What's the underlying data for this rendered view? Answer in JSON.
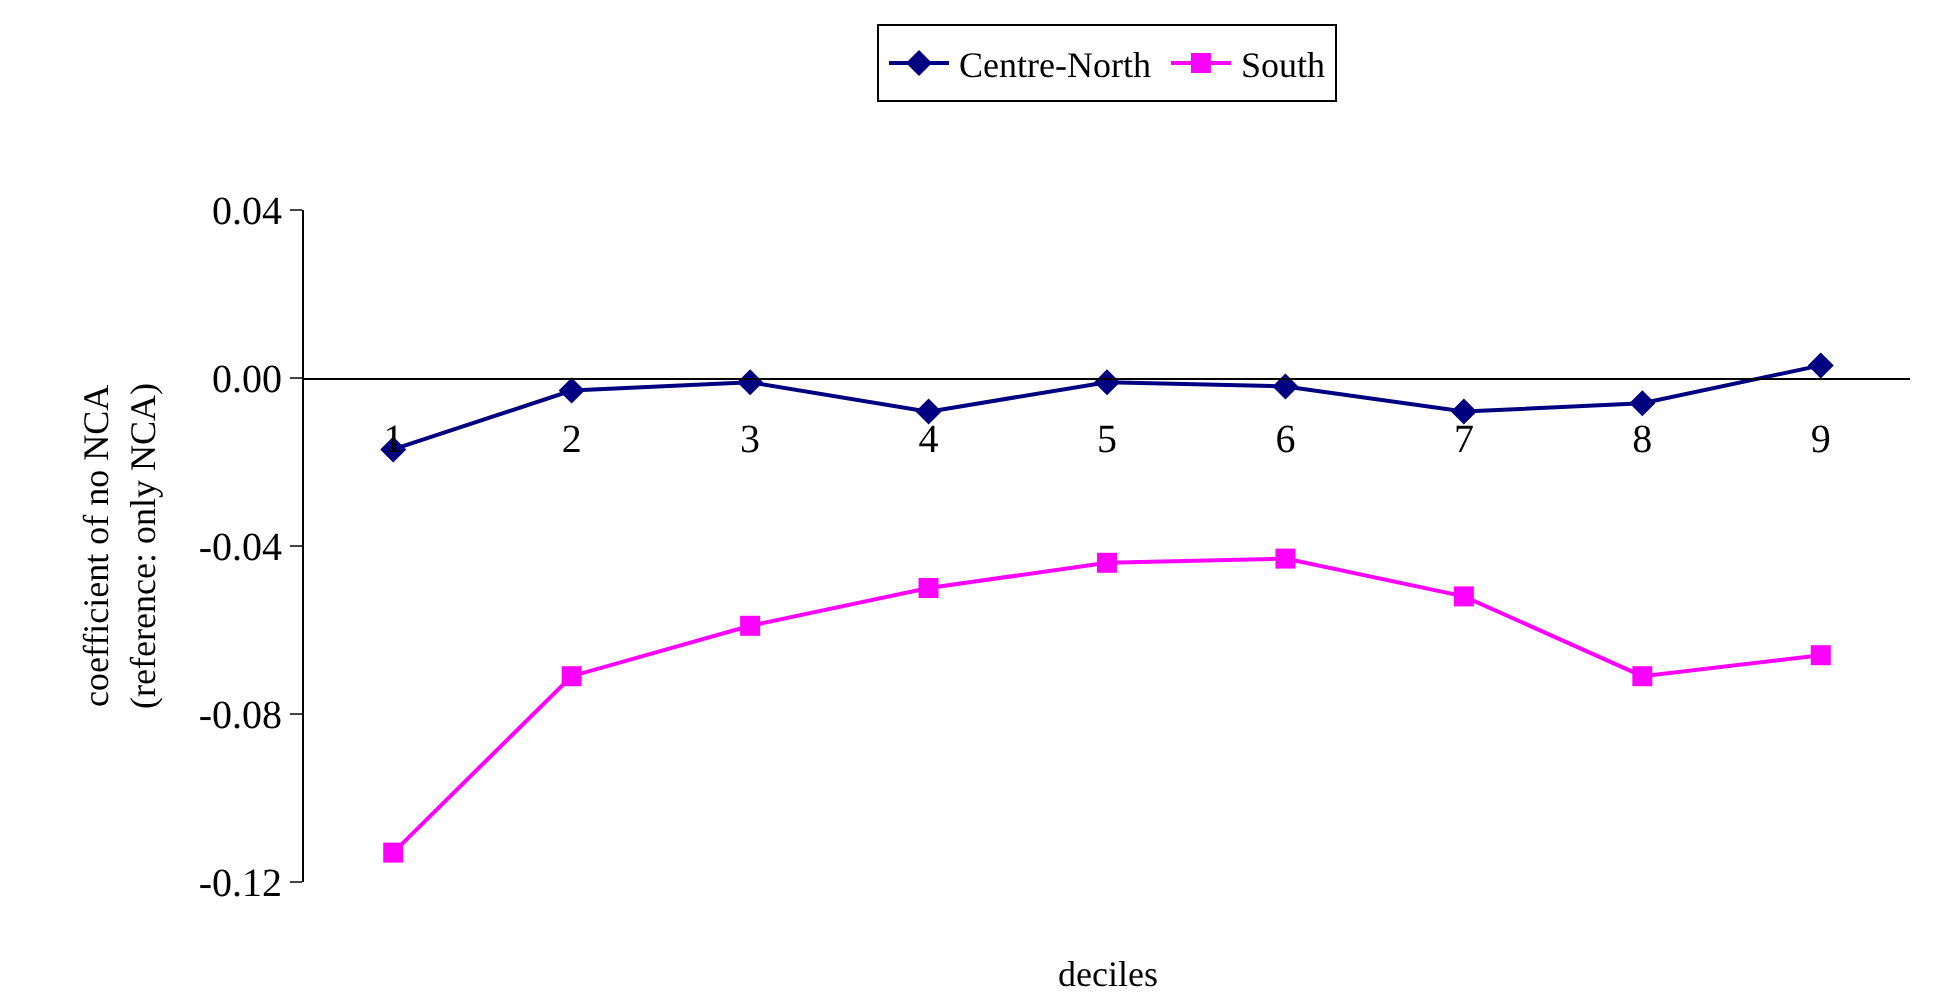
{
  "chart_data": {
    "type": "line",
    "xlabel": "deciles",
    "ylabel": "coefficient of no NCA\n(reference: only NCA)",
    "categories": [
      "1",
      "2",
      "3",
      "4",
      "5",
      "6",
      "7",
      "8",
      "9"
    ],
    "series": [
      {
        "name": "Centre-North",
        "color": "#000080",
        "marker": "diamond",
        "values": [
          -0.017,
          -0.003,
          -0.001,
          -0.008,
          -0.001,
          -0.002,
          -0.008,
          -0.006,
          0.003
        ]
      },
      {
        "name": "South",
        "color": "#ff00ff",
        "marker": "square",
        "values": [
          -0.113,
          -0.071,
          -0.059,
          -0.05,
          -0.044,
          -0.043,
          -0.052,
          -0.071,
          -0.066
        ]
      }
    ],
    "ylim": [
      -0.12,
      0.04
    ],
    "yticks": [
      {
        "value": 0.04,
        "label": "0.04"
      },
      {
        "value": 0.0,
        "label": "0.00"
      },
      {
        "value": -0.04,
        "label": "-0.04"
      },
      {
        "value": -0.08,
        "label": "-0.08"
      },
      {
        "value": -0.12,
        "label": "-0.12"
      }
    ],
    "legend": "top",
    "line_style": "solid"
  }
}
